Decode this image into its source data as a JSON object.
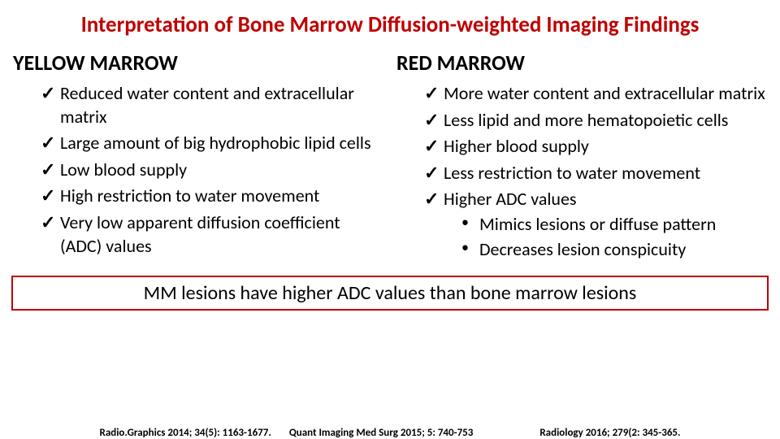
{
  "colors": {
    "title": "#c00000",
    "body": "#000000",
    "box_border": "#c00000",
    "box_bg": "#ffffff",
    "background": "#ffffff"
  },
  "typography": {
    "title_fontsize": 27,
    "header_fontsize": 26,
    "body_fontsize": 22,
    "box_fontsize": 24,
    "ref_fontsize": 13
  },
  "layout": {
    "box_border_width": 2
  },
  "title": "Interpretation of Bone Marrow Diffusion-weighted Imaging Findings",
  "left": {
    "header": "YELLOW MARROW",
    "items": [
      "Reduced water content and extracellular matrix",
      "Large amount of big hydrophobic lipid cells",
      "Low blood supply",
      "High restriction to water movement",
      "Very low apparent diffusion coefficient (ADC) values"
    ]
  },
  "right": {
    "header": "RED MARROW",
    "items": [
      "More water content and extracellular matrix",
      "Less lipid and more hematopoietic cells",
      "Higher blood supply",
      "Less restriction to water movement",
      "Higher ADC values"
    ],
    "sub": [
      "Mimics lesions or diffuse pattern",
      "Decreases lesion conspicuity"
    ]
  },
  "box": "MM lesions have higher ADC values than bone marrow lesions",
  "refs": {
    "r1": "Radio.Graphics 2014; 34(5): 1163-1677.",
    "r2": "Quant Imaging Med Surg 2015; 5: 740-753",
    "r3": "Radiology 2016; 279(2: 345-365."
  }
}
